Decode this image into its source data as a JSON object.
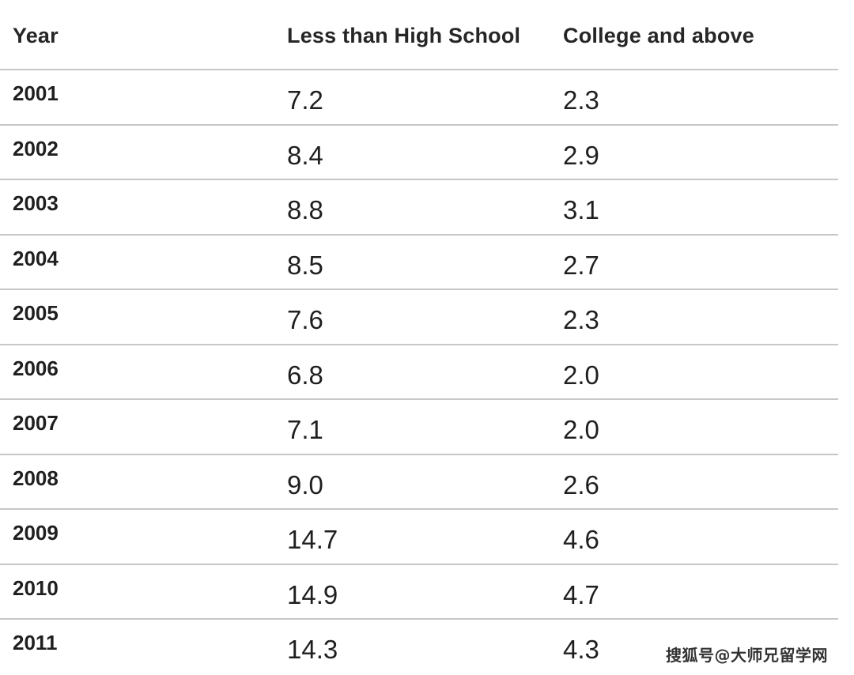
{
  "chart_data": {
    "type": "table",
    "columns": [
      "Year",
      "Less than High School",
      "College and above"
    ],
    "rows": [
      [
        "2001",
        "7.2",
        "2.3"
      ],
      [
        "2002",
        "8.4",
        "2.9"
      ],
      [
        "2003",
        "8.8",
        "3.1"
      ],
      [
        "2004",
        "8.5",
        "2.7"
      ],
      [
        "2005",
        "7.6",
        "2.3"
      ],
      [
        "2006",
        "6.8",
        "2.0"
      ],
      [
        "2007",
        "7.1",
        "2.0"
      ],
      [
        "2008",
        "9.0",
        "2.6"
      ],
      [
        "2009",
        "14.7",
        "4.6"
      ],
      [
        "2010",
        "14.9",
        "4.7"
      ],
      [
        "2011",
        "14.3",
        "4.3"
      ]
    ]
  },
  "watermark": "搜狐号@大师兄留学网",
  "colors": {
    "text": "#1f1f1f",
    "rule": "#c7c7c7",
    "background": "#ffffff"
  }
}
